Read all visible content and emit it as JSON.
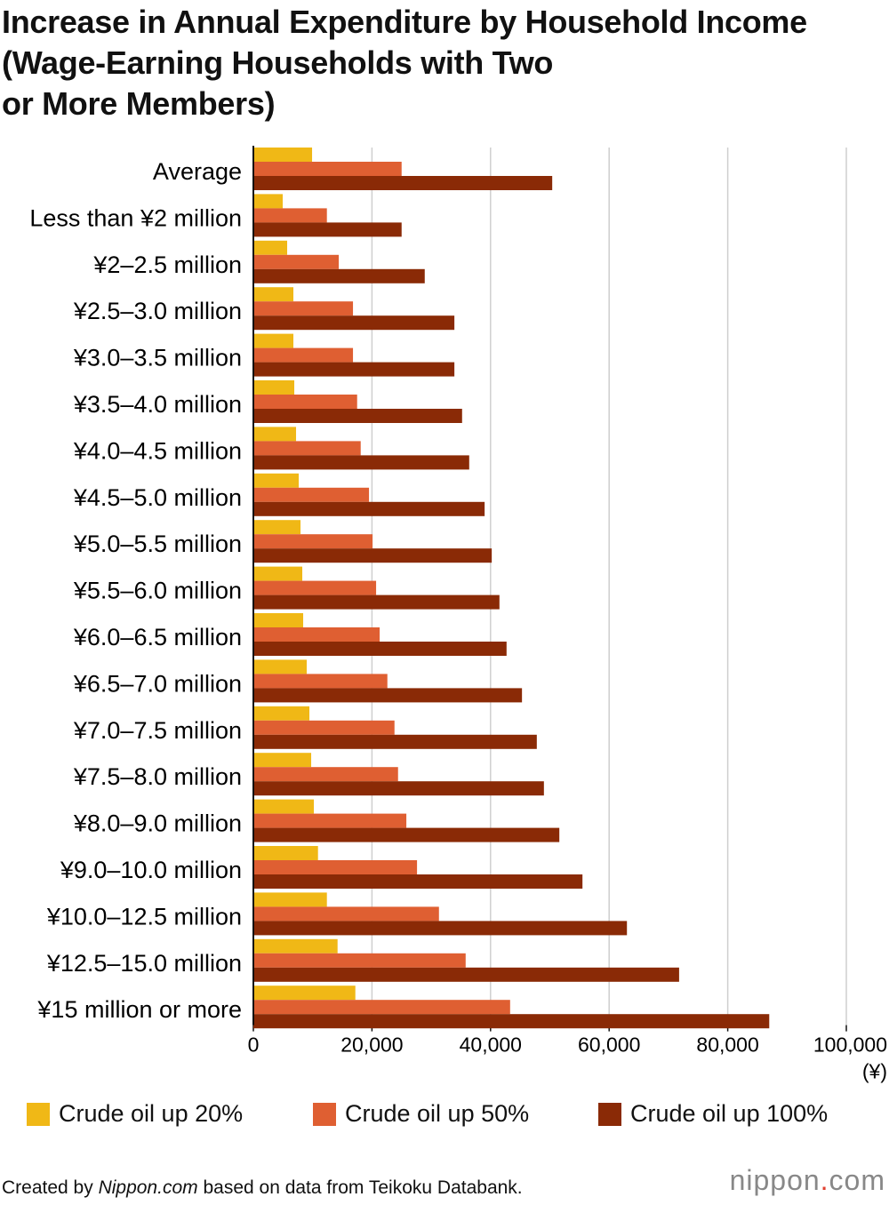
{
  "chart_data": {
    "type": "bar",
    "orientation": "horizontal",
    "title": "Increase in Annual Expenditure by Household Income (Wage-Earning Households with Two or More Members)",
    "title_lines": [
      "Increase in Annual Expenditure by Household Income",
      "(Wage-Earning Households with Two",
      "or More Members)"
    ],
    "categories": [
      "Average",
      "Less than ¥2 million",
      "¥2–2.5 million",
      "¥2.5–3.0 million",
      "¥3.0–3.5 million",
      "¥3.5–4.0 million",
      "¥4.0–4.5 million",
      "¥4.5–5.0 million",
      "¥5.0–5.5 million",
      "¥5.5–6.0 million",
      "¥6.0–6.5 million",
      "¥6.5–7.0 million",
      "¥7.0–7.5 million",
      "¥7.5–8.0 million",
      "¥8.0–9.0 million",
      "¥9.0–10.0 million",
      "¥10.0–12.5 million",
      "¥12.5–15.0 million",
      "¥15 million or more"
    ],
    "series": [
      {
        "name": "Crude oil up 20%",
        "color": "#f0b816",
        "values": [
          9900,
          4950,
          5700,
          6750,
          6750,
          6900,
          7200,
          7650,
          7950,
          8250,
          8400,
          9000,
          9450,
          9750,
          10200,
          10900,
          12400,
          14200,
          17200
        ]
      },
      {
        "name": "Crude oil up 50%",
        "color": "#df5f32",
        "values": [
          25000,
          12400,
          14400,
          16800,
          16800,
          17500,
          18100,
          19500,
          20100,
          20700,
          21300,
          22600,
          23800,
          24400,
          25800,
          27600,
          31300,
          35800,
          43300
        ]
      },
      {
        "name": "Crude oil up 100%",
        "color": "#8a2a06",
        "values": [
          50400,
          25000,
          28900,
          33900,
          33900,
          35200,
          36400,
          39000,
          40200,
          41500,
          42700,
          45300,
          47800,
          49000,
          51600,
          55500,
          63000,
          71800,
          87000
        ]
      }
    ],
    "xlim": [
      0,
      100000
    ],
    "xticks": [
      0,
      20000,
      40000,
      60000,
      80000,
      100000
    ],
    "xtick_labels": [
      "0",
      "20,000",
      "40,000",
      "60,000",
      "80,000",
      "100,000"
    ],
    "xunit": "(¥)",
    "grid": true,
    "legend": "bottom"
  },
  "footer": {
    "prefix": "Created by ",
    "source_italic": "Nippon.com",
    "suffix": " based on data from Teikoku Databank."
  },
  "logo": {
    "text1": "nippon",
    "dot": ".",
    "text2": "com"
  }
}
